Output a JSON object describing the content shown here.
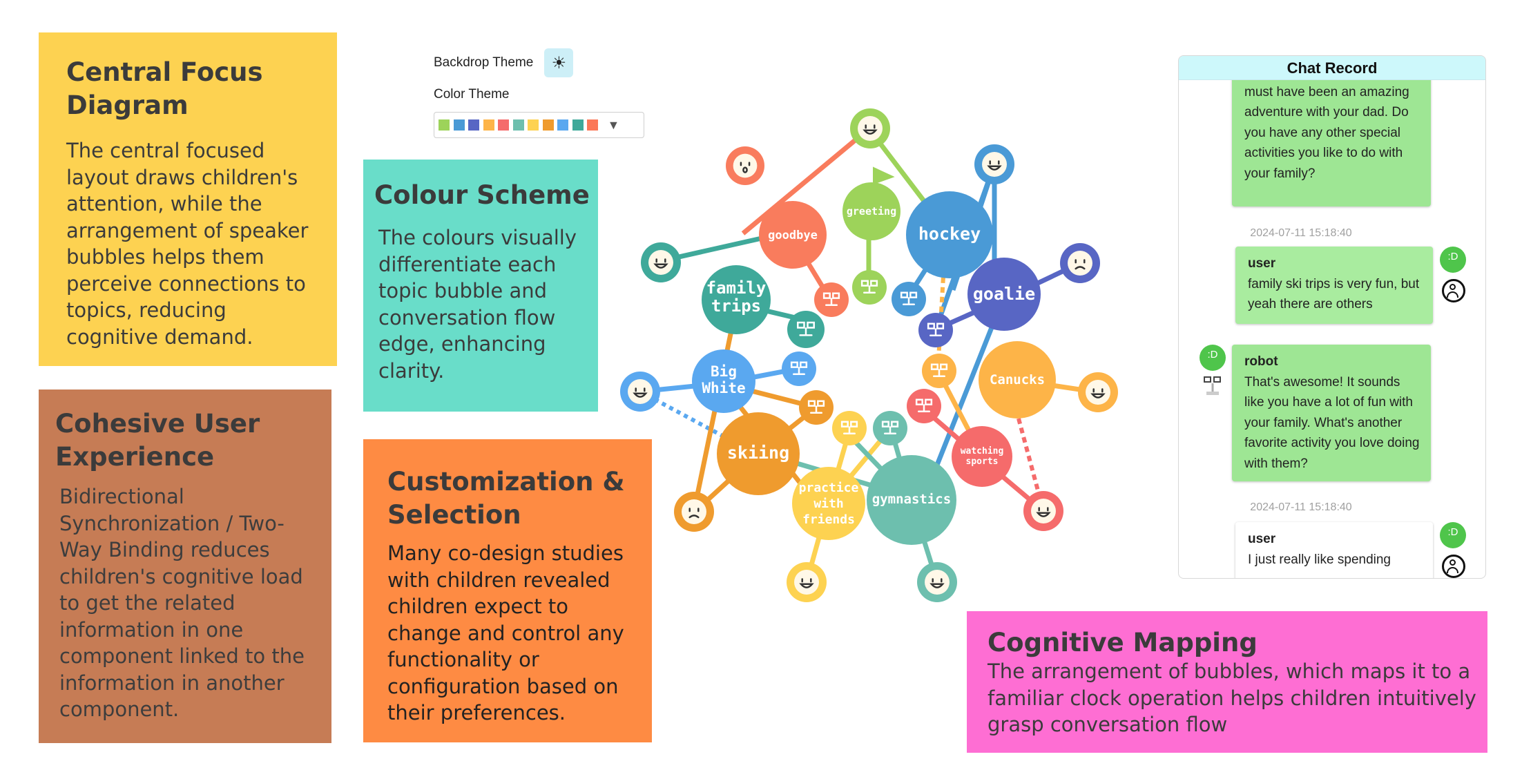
{
  "panels": {
    "central": {
      "title_lines": [
        "Central Focus",
        "Diagram"
      ],
      "body": "The central focused layout draws children's attention, while the arrangement of speaker bubbles helps them perceive connections to topics, reducing cognitive demand."
    },
    "cohesive": {
      "title_lines": [
        "Cohesive User",
        "Experience"
      ],
      "body": "Bidirectional Synchronization / Two-Way Binding reduces children's cognitive load to get the related information in one component linked to the information in another component."
    },
    "colour": {
      "title": "Colour Scheme",
      "body": "The colours visually differentiate each topic bubble and conversation flow edge, enhancing clarity."
    },
    "custom": {
      "title_lines": [
        "Customization &",
        "Selection"
      ],
      "body": "Many co-design studies with children revealed children expect to change and control any functionality or configuration based on their preferences."
    },
    "cognitive": {
      "title": "Cognitive Mapping",
      "body": "The arrangement of bubbles, which maps it to a familiar clock operation helps children intuitively grasp conversation flow"
    }
  },
  "controls": {
    "backdrop_label": "Backdrop Theme",
    "backdrop_icon": "sun-icon",
    "color_label": "Color Theme",
    "palette": [
      "#9dd35a",
      "#4a9ad6",
      "#5866c4",
      "#fdb448",
      "#f56b6b",
      "#6dbfae",
      "#fdd251",
      "#ef9b2e",
      "#5aa8f0",
      "#3fa99a",
      "#fb7858"
    ],
    "dropdown_icon": "dropdown-arrow-icon"
  },
  "diagram": {
    "topics": [
      {
        "id": "goodbye",
        "label": "goodbye",
        "color": "#f97c5d"
      },
      {
        "id": "greeting",
        "label": "greeting",
        "color": "#9dd35a"
      },
      {
        "id": "hockey",
        "label": "hockey",
        "color": "#4a9ad6"
      },
      {
        "id": "goalie",
        "label": "goalie",
        "color": "#5866c4"
      },
      {
        "id": "family_trips",
        "label": "family trips",
        "color": "#3fa99a"
      },
      {
        "id": "big_white",
        "label": "Big White",
        "color": "#5aa8f0"
      },
      {
        "id": "canucks",
        "label": "Canucks",
        "color": "#fdb448"
      },
      {
        "id": "skiing",
        "label": "skiing",
        "color": "#ef9b2e"
      },
      {
        "id": "practice",
        "label": "practice with friends",
        "color": "#fdd251"
      },
      {
        "id": "gymnastics",
        "label": "gymnastics",
        "color": "#6dbfae"
      },
      {
        "id": "watching",
        "label": "watching sports",
        "color": "#f56b6b"
      }
    ]
  },
  "chat": {
    "title": "Chat Record",
    "messages": [
      {
        "speaker": "",
        "text": "runs are really challenging. It must have been an amazing adventure with your dad. Do you have any other special activities you like to do with your family?"
      },
      {
        "timestamp": "2024-07-11 15:18:40",
        "speaker": "user",
        "text": "family ski trips is very fun, but yeah there are others"
      },
      {
        "speaker": "robot",
        "text": "That's awesome! It sounds like you have a lot of fun with your family. What's another favorite activity you love doing with them?"
      },
      {
        "timestamp": "2024-07-11 15:18:40",
        "speaker": "user",
        "text": "I just really like spending"
      }
    ],
    "avatar_text": ":D"
  }
}
